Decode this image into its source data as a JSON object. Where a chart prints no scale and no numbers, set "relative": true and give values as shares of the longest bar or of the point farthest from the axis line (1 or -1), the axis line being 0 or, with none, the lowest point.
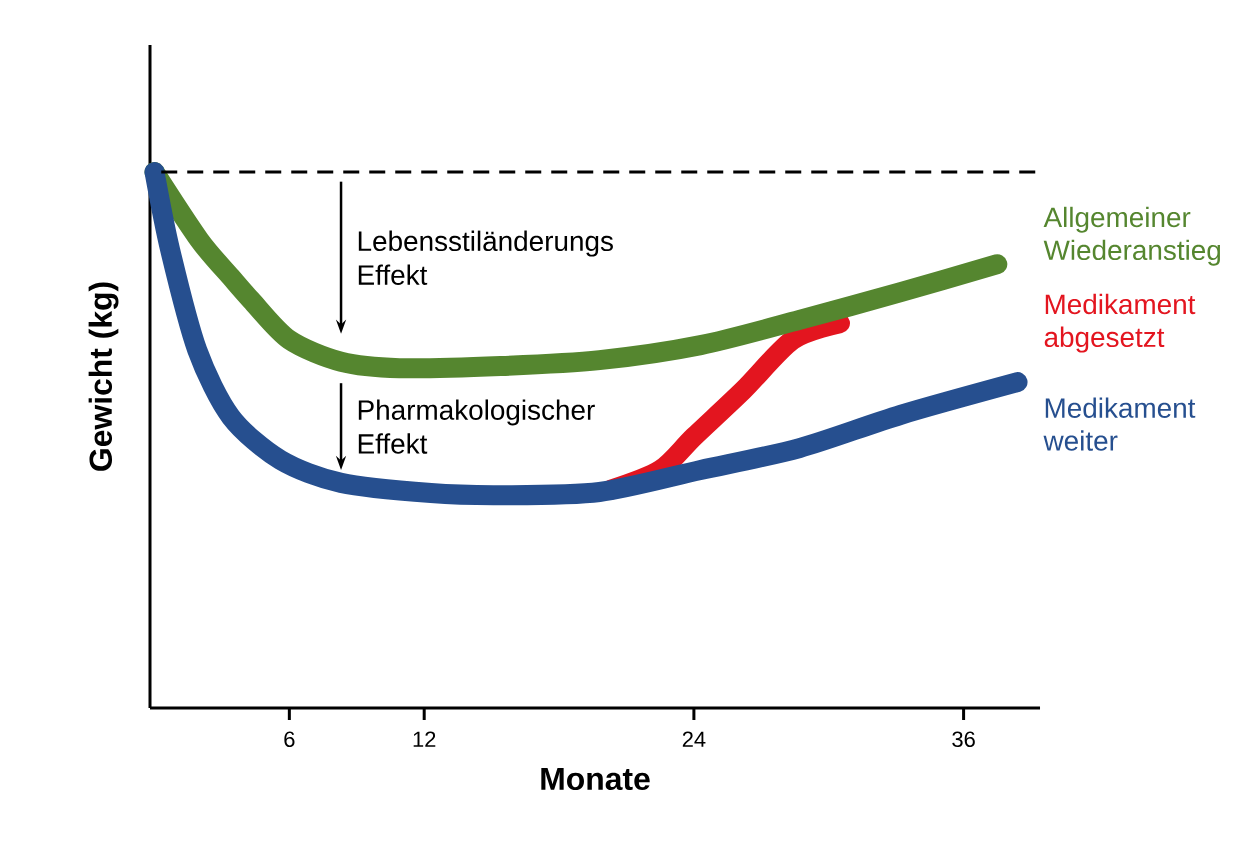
{
  "chart_data": {
    "type": "line",
    "relative": true,
    "xlabel": "Monate",
    "ylabel": "Gewicht (kg)",
    "xlim": [
      -0.2,
      39.4
    ],
    "xticks": [
      6,
      12,
      24,
      36
    ],
    "tick_labels": "x",
    "line_style": "solid",
    "ref_lines": [
      {
        "axis": "y",
        "value": 1,
        "color": "#000000",
        "line_style": "dashed"
      }
    ],
    "annotations": [
      "Lebensstiländerungs Effekt",
      "Pharmakologischer Effekt"
    ],
    "series": [
      {
        "name": "Medikament abgesetzt",
        "color": "#e3151f",
        "x": [
          20.3,
          22.5,
          24.0,
          26.2,
          28.4,
          30.5
        ],
        "values": [
          0.407,
          0.444,
          0.506,
          0.593,
          0.687,
          0.718
        ]
      },
      {
        "name": "Allgemeiner Wiederanstieg",
        "color": "#55862f",
        "x": [
          0,
          2.0,
          3.4,
          4.3,
          6.0,
          8.3,
          10.9,
          15.4,
          19.8,
          24.3,
          28.7,
          33.2,
          37.5
        ],
        "values": [
          1,
          0.873,
          0.804,
          0.761,
          0.687,
          0.646,
          0.634,
          0.638,
          0.649,
          0.677,
          0.724,
          0.776,
          0.828
        ]
      },
      {
        "name": "Medikament weiter",
        "color": "#264f8f",
        "x": [
          0,
          0.7,
          1.9,
          3.4,
          5.6,
          8.3,
          12.3,
          15.4,
          19.8,
          24.3,
          28.7,
          33.2,
          38.4
        ],
        "values": [
          1,
          0.854,
          0.668,
          0.543,
          0.463,
          0.42,
          0.401,
          0.397,
          0.403,
          0.444,
          0.485,
          0.547,
          0.608
        ]
      }
    ]
  }
}
